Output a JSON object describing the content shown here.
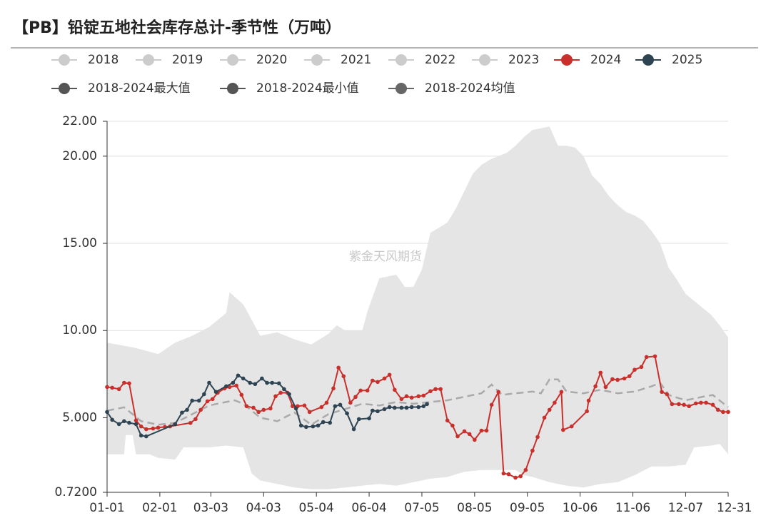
{
  "chart_data": {
    "type": "line",
    "title": "【PB】铅锭五地社会库存总计-季节性（万吨）",
    "watermark": "紫金天风期货",
    "band_color": "#e5e5e5",
    "xlim": [
      0,
      365
    ],
    "xticks": [
      {
        "value": 0,
        "label": "01-01"
      },
      {
        "value": 31,
        "label": "02-01"
      },
      {
        "value": 61,
        "label": "03-03"
      },
      {
        "value": 92,
        "label": "04-03"
      },
      {
        "value": 123,
        "label": "05-04"
      },
      {
        "value": 154,
        "label": "06-04"
      },
      {
        "value": 185,
        "label": "07-05"
      },
      {
        "value": 216,
        "label": "08-05"
      },
      {
        "value": 247,
        "label": "09-05"
      },
      {
        "value": 278,
        "label": "10-06"
      },
      {
        "value": 309,
        "label": "11-06"
      },
      {
        "value": 340,
        "label": "12-07"
      },
      {
        "value": 365,
        "label": "12-31"
      }
    ],
    "ylim": [
      0.72,
      22
    ],
    "yticks": [
      {
        "value": 0.72,
        "label": "0.7200"
      },
      {
        "value": 5,
        "label": "5.000"
      },
      {
        "value": 10,
        "label": "10.00"
      },
      {
        "value": 15,
        "label": "15.00"
      },
      {
        "value": 20,
        "label": "20.00"
      },
      {
        "value": 22,
        "label": "22.00"
      }
    ],
    "grid": true,
    "series": [
      {
        "name": "2018",
        "color": "#cccccc",
        "hidden": true
      },
      {
        "name": "2019",
        "color": "#cccccc",
        "hidden": true
      },
      {
        "name": "2020",
        "color": "#cccccc",
        "hidden": true
      },
      {
        "name": "2021",
        "color": "#cccccc",
        "hidden": true
      },
      {
        "name": "2022",
        "color": "#cccccc",
        "hidden": true
      },
      {
        "name": "2023",
        "color": "#cccccc",
        "hidden": true
      },
      {
        "name": "2024",
        "color": "#c9302c",
        "style": "points",
        "x": [
          0,
          3,
          7,
          10,
          13,
          17,
          20,
          23,
          27,
          30,
          34,
          37,
          49,
          52,
          55,
          59,
          62,
          65,
          69,
          72,
          76,
          79,
          82,
          86,
          89,
          92,
          96,
          99,
          102,
          106,
          109,
          112,
          116,
          119,
          126,
          129,
          133,
          136,
          139,
          143,
          146,
          149,
          153,
          156,
          159,
          163,
          166,
          169,
          173,
          176,
          179,
          183,
          186,
          190,
          193,
          196,
          200,
          203,
          206,
          210,
          213,
          216,
          220,
          223,
          226,
          230,
          233,
          236,
          240,
          243,
          246,
          250,
          253,
          257,
          260,
          263,
          267,
          268,
          273,
          282,
          283,
          287,
          290,
          293,
          297,
          300,
          304,
          307,
          310,
          314,
          317,
          322,
          326,
          329,
          332,
          336,
          339,
          342,
          346,
          349,
          352,
          356,
          359,
          362,
          365
        ],
        "values": [
          6.76,
          6.72,
          6.64,
          7.0,
          6.97,
          4.84,
          4.5,
          4.34,
          4.38,
          4.43,
          4.47,
          4.5,
          4.7,
          4.92,
          5.45,
          5.94,
          6.07,
          6.43,
          6.68,
          6.76,
          6.84,
          6.31,
          5.66,
          5.57,
          5.33,
          5.45,
          5.53,
          6.23,
          6.43,
          6.43,
          5.66,
          5.66,
          5.7,
          5.33,
          5.61,
          5.86,
          6.68,
          7.87,
          7.38,
          5.86,
          6.19,
          6.56,
          6.56,
          7.13,
          7.05,
          7.25,
          7.46,
          6.6,
          6.07,
          6.23,
          6.15,
          6.23,
          6.27,
          6.52,
          6.64,
          6.64,
          4.84,
          4.55,
          3.93,
          4.22,
          4.06,
          3.73,
          4.26,
          4.26,
          5.74,
          6.48,
          1.8,
          1.76,
          1.56,
          1.64,
          2.0,
          3.11,
          3.89,
          5.0,
          5.45,
          5.86,
          6.48,
          4.3,
          4.5,
          5.37,
          5.98,
          6.8,
          7.58,
          6.76,
          7.21,
          7.17,
          7.25,
          7.38,
          7.75,
          7.91,
          8.48,
          8.52,
          6.48,
          6.35,
          5.78,
          5.78,
          5.74,
          5.66,
          5.82,
          5.86,
          5.86,
          5.74,
          5.45,
          5.33,
          5.33
        ]
      },
      {
        "name": "2025",
        "color": "#2e4453",
        "style": "points",
        "x": [
          0,
          3,
          7,
          10,
          13,
          17,
          20,
          23,
          40,
          44,
          47,
          50,
          54,
          57,
          60,
          64,
          70,
          74,
          77,
          80,
          84,
          87,
          91,
          94,
          97,
          101,
          104,
          107,
          111,
          114,
          117,
          121,
          124,
          127,
          131,
          134,
          137,
          141,
          145,
          148,
          154,
          156,
          159,
          163,
          166,
          169,
          173,
          176,
          179,
          183,
          186,
          188
        ],
        "values": [
          5.33,
          4.88,
          4.63,
          4.8,
          4.71,
          4.63,
          3.98,
          3.93,
          4.63,
          5.29,
          5.45,
          5.98,
          5.98,
          6.35,
          7.0,
          6.48,
          6.8,
          7.0,
          7.42,
          7.25,
          7.0,
          6.93,
          7.25,
          7.0,
          7.0,
          6.97,
          6.64,
          6.35,
          5.53,
          4.55,
          4.47,
          4.5,
          4.55,
          4.75,
          4.71,
          5.66,
          5.74,
          5.25,
          4.34,
          4.92,
          4.96,
          5.41,
          5.37,
          5.49,
          5.61,
          5.57,
          5.57,
          5.57,
          5.61,
          5.61,
          5.66,
          5.78
        ]
      },
      {
        "name": "2018-2024最大值",
        "color": "#555555",
        "style": "band-top",
        "x": [
          0,
          17,
          30,
          40,
          50,
          60,
          70,
          72,
          80,
          84,
          90,
          100,
          110,
          120,
          130,
          135,
          140,
          150,
          153,
          160,
          170,
          175,
          180,
          185,
          190,
          195,
          200,
          205,
          210,
          215,
          220,
          225,
          230,
          235,
          240,
          245,
          250,
          255,
          260,
          265,
          270,
          275,
          280,
          285,
          290,
          295,
          300,
          305,
          310,
          315,
          320,
          325,
          330,
          335,
          340,
          345,
          350,
          355,
          360,
          365
        ],
        "values": [
          9.3,
          9.0,
          8.65,
          9.3,
          9.7,
          10.2,
          11.0,
          12.2,
          11.5,
          10.8,
          9.7,
          9.9,
          9.5,
          9.2,
          9.8,
          10.3,
          10.0,
          10.0,
          11.1,
          13.0,
          13.2,
          12.5,
          12.5,
          13.5,
          15.6,
          15.9,
          16.2,
          17.0,
          18.0,
          19.0,
          19.5,
          19.8,
          20.0,
          20.2,
          20.6,
          21.1,
          21.5,
          21.6,
          21.7,
          20.6,
          20.6,
          20.5,
          20.0,
          18.9,
          18.4,
          17.7,
          17.2,
          16.8,
          16.6,
          16.3,
          15.7,
          15.0,
          13.6,
          12.9,
          12.1,
          11.7,
          11.3,
          10.9,
          10.3,
          9.6
        ]
      },
      {
        "name": "2018-2024最小值",
        "color": "#555555",
        "style": "band-bottom",
        "x": [
          0,
          10,
          11,
          15,
          17,
          25,
          30,
          40,
          45,
          60,
          70,
          80,
          85,
          90,
          100,
          110,
          120,
          130,
          140,
          150,
          160,
          170,
          180,
          190,
          200,
          210,
          220,
          230,
          240,
          245,
          250,
          260,
          270,
          280,
          290,
          300,
          310,
          320,
          330,
          340,
          345,
          355,
          360,
          365
        ],
        "values": [
          2.9,
          2.9,
          4.0,
          4.0,
          2.9,
          2.9,
          2.7,
          2.6,
          3.3,
          3.3,
          3.4,
          3.3,
          1.8,
          1.4,
          1.2,
          1.0,
          0.9,
          0.9,
          1.0,
          1.1,
          1.2,
          1.1,
          1.3,
          1.5,
          1.6,
          1.9,
          2.0,
          2.0,
          2.0,
          1.7,
          1.6,
          1.3,
          1.1,
          1.0,
          1.2,
          1.3,
          1.7,
          2.2,
          2.2,
          2.3,
          3.3,
          3.4,
          3.5,
          2.9
        ]
      },
      {
        "name": "2018-2024均值",
        "color": "#666666",
        "style": "dashed",
        "line_color": "#aaaaaa",
        "x": [
          0,
          10,
          20,
          30,
          40,
          50,
          60,
          70,
          75,
          80,
          90,
          100,
          110,
          120,
          130,
          140,
          150,
          160,
          170,
          180,
          190,
          200,
          210,
          220,
          226,
          232,
          240,
          250,
          255,
          260,
          265,
          270,
          280,
          290,
          300,
          310,
          320,
          325,
          330,
          340,
          350,
          356,
          365
        ],
        "values": [
          5.4,
          5.6,
          4.8,
          4.6,
          4.7,
          5.2,
          5.7,
          5.9,
          6.0,
          5.8,
          5.0,
          4.8,
          5.3,
          4.6,
          5.2,
          5.5,
          5.8,
          5.7,
          5.9,
          5.8,
          5.9,
          6.0,
          6.2,
          6.4,
          6.9,
          6.3,
          6.4,
          6.5,
          6.4,
          7.2,
          7.2,
          6.5,
          6.4,
          6.6,
          6.4,
          6.5,
          6.8,
          7.0,
          6.3,
          6.0,
          6.2,
          6.3,
          5.6
        ]
      }
    ]
  }
}
